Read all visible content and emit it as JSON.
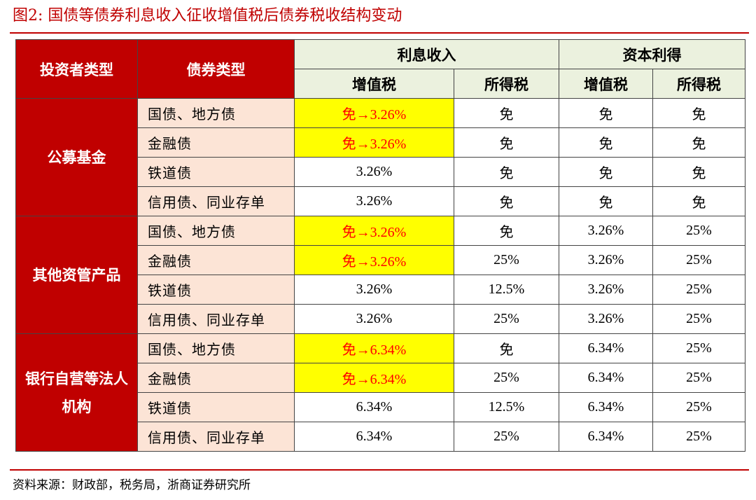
{
  "title": "图2:  国债等债券利息收入征收增值税后债券税收结构变动",
  "table": {
    "header": {
      "investor_type": "投资者类型",
      "bond_type": "债券类型",
      "interest_income": "利息收入",
      "capital_gain": "资本利得",
      "vat": "增值税",
      "income_tax": "所得税"
    },
    "groups": [
      {
        "investor": "公募基金",
        "rows": [
          {
            "bond": "国债、地方债",
            "interest_vat": "免→3.26%",
            "interest_income_tax": "免",
            "capital_vat": "免",
            "capital_income_tax": "免",
            "highlight": true
          },
          {
            "bond": "金融债",
            "interest_vat": "免→3.26%",
            "interest_income_tax": "免",
            "capital_vat": "免",
            "capital_income_tax": "免",
            "highlight": true
          },
          {
            "bond": "铁道债",
            "interest_vat": "3.26%",
            "interest_income_tax": "免",
            "capital_vat": "免",
            "capital_income_tax": "免",
            "highlight": false
          },
          {
            "bond": "信用债、同业存单",
            "interest_vat": "3.26%",
            "interest_income_tax": "免",
            "capital_vat": "免",
            "capital_income_tax": "免",
            "highlight": false
          }
        ]
      },
      {
        "investor": "其他资管产品",
        "rows": [
          {
            "bond": "国债、地方债",
            "interest_vat": "免→3.26%",
            "interest_income_tax": "免",
            "capital_vat": "3.26%",
            "capital_income_tax": "25%",
            "highlight": true
          },
          {
            "bond": "金融债",
            "interest_vat": "免→3.26%",
            "interest_income_tax": "25%",
            "capital_vat": "3.26%",
            "capital_income_tax": "25%",
            "highlight": true
          },
          {
            "bond": "铁道债",
            "interest_vat": "3.26%",
            "interest_income_tax": "12.5%",
            "capital_vat": "3.26%",
            "capital_income_tax": "25%",
            "highlight": false
          },
          {
            "bond": "信用债、同业存单",
            "interest_vat": "3.26%",
            "interest_income_tax": "25%",
            "capital_vat": "3.26%",
            "capital_income_tax": "25%",
            "highlight": false
          }
        ]
      },
      {
        "investor": "银行自营等法人机构",
        "rows": [
          {
            "bond": "国债、地方债",
            "interest_vat": "免→6.34%",
            "interest_income_tax": "免",
            "capital_vat": "6.34%",
            "capital_income_tax": "25%",
            "highlight": true
          },
          {
            "bond": "金融债",
            "interest_vat": "免→6.34%",
            "interest_income_tax": "25%",
            "capital_vat": "6.34%",
            "capital_income_tax": "25%",
            "highlight": true
          },
          {
            "bond": "铁道债",
            "interest_vat": "6.34%",
            "interest_income_tax": "12.5%",
            "capital_vat": "6.34%",
            "capital_income_tax": "25%",
            "highlight": false
          },
          {
            "bond": "信用债、同业存单",
            "interest_vat": "6.34%",
            "interest_income_tax": "25%",
            "capital_vat": "6.34%",
            "capital_income_tax": "25%",
            "highlight": false
          }
        ]
      }
    ]
  },
  "source": "资料来源：财政部，税务局，浙商证券研究所",
  "colors": {
    "accent_red": "#c00000",
    "header_green": "#ebf1de",
    "bond_peach": "#fce4d6",
    "highlight_yellow": "#ffff00",
    "highlight_text": "#ff0000"
  }
}
